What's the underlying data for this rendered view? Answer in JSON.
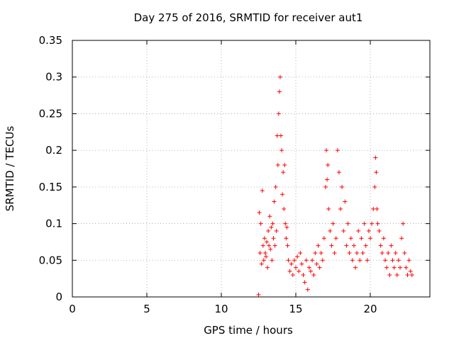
{
  "chart_data": {
    "type": "scatter",
    "title": "Day 275 of 2016, SRMTID for receiver aut1",
    "xlabel": "GPS time / hours",
    "ylabel": "SRMTID / TECUs",
    "xlim": [
      0,
      24
    ],
    "ylim": [
      0,
      0.35
    ],
    "xticks": [
      0,
      5,
      10,
      15,
      20
    ],
    "xtick_labels": [
      "0",
      "5",
      "10",
      "15",
      "20"
    ],
    "yticks": [
      0,
      0.05,
      0.1,
      0.15,
      0.2,
      0.25,
      0.3,
      0.35
    ],
    "ytick_labels": [
      "0",
      "0.05",
      "0.1",
      "0.15",
      "0.2",
      "0.25",
      "0.3",
      "0.35"
    ],
    "grid": true,
    "marker": "plus",
    "color": "#ff0000",
    "series": [
      {
        "name": "",
        "x": [
          12.5,
          12.55,
          12.6,
          12.65,
          12.7,
          12.75,
          12.8,
          12.85,
          12.9,
          12.95,
          13.0,
          13.05,
          13.1,
          13.15,
          13.2,
          13.25,
          13.3,
          13.35,
          13.4,
          13.45,
          13.5,
          13.55,
          13.6,
          13.65,
          13.7,
          13.75,
          13.8,
          13.85,
          13.9,
          13.95,
          14.0,
          14.05,
          14.1,
          14.15,
          14.2,
          14.25,
          14.3,
          14.35,
          14.4,
          14.45,
          14.5,
          14.6,
          14.7,
          14.8,
          14.9,
          15.0,
          15.1,
          15.2,
          15.3,
          15.4,
          15.5,
          15.6,
          15.7,
          15.8,
          15.9,
          16.0,
          16.1,
          16.2,
          16.3,
          16.4,
          16.5,
          16.6,
          16.7,
          16.8,
          16.9,
          17.0,
          17.05,
          17.1,
          17.15,
          17.2,
          17.3,
          17.4,
          17.5,
          17.6,
          17.7,
          17.8,
          17.9,
          18.0,
          18.1,
          18.2,
          18.3,
          18.4,
          18.5,
          18.6,
          18.7,
          18.8,
          18.9,
          19.0,
          19.1,
          19.2,
          19.3,
          19.4,
          19.5,
          19.6,
          19.7,
          19.8,
          19.9,
          20.0,
          20.1,
          20.2,
          20.3,
          20.35,
          20.4,
          20.45,
          20.5,
          20.6,
          20.7,
          20.8,
          20.9,
          21.0,
          21.1,
          21.2,
          21.3,
          21.4,
          21.5,
          21.6,
          21.7,
          21.8,
          21.9,
          22.0,
          22.1,
          22.2,
          22.3,
          22.4,
          22.5,
          22.6,
          22.7,
          22.8
        ],
        "y": [
          0.003,
          0.115,
          0.06,
          0.1,
          0.045,
          0.145,
          0.07,
          0.05,
          0.08,
          0.06,
          0.055,
          0.075,
          0.04,
          0.09,
          0.07,
          0.11,
          0.065,
          0.095,
          0.05,
          0.1,
          0.08,
          0.13,
          0.07,
          0.15,
          0.09,
          0.22,
          0.18,
          0.25,
          0.28,
          0.3,
          0.22,
          0.2,
          0.14,
          0.17,
          0.12,
          0.18,
          0.1,
          0.08,
          0.095,
          0.07,
          0.05,
          0.035,
          0.045,
          0.03,
          0.05,
          0.04,
          0.055,
          0.035,
          0.06,
          0.045,
          0.03,
          0.02,
          0.05,
          0.01,
          0.04,
          0.035,
          0.05,
          0.03,
          0.06,
          0.045,
          0.07,
          0.04,
          0.06,
          0.05,
          0.08,
          0.15,
          0.2,
          0.16,
          0.18,
          0.12,
          0.09,
          0.07,
          0.1,
          0.06,
          0.08,
          0.2,
          0.17,
          0.12,
          0.15,
          0.09,
          0.13,
          0.07,
          0.1,
          0.06,
          0.08,
          0.05,
          0.07,
          0.04,
          0.06,
          0.09,
          0.05,
          0.08,
          0.06,
          0.1,
          0.07,
          0.05,
          0.09,
          0.08,
          0.1,
          0.12,
          0.15,
          0.19,
          0.17,
          0.12,
          0.1,
          0.09,
          0.07,
          0.06,
          0.08,
          0.05,
          0.04,
          0.06,
          0.03,
          0.07,
          0.05,
          0.04,
          0.06,
          0.03,
          0.05,
          0.04,
          0.08,
          0.1,
          0.06,
          0.04,
          0.03,
          0.05,
          0.035,
          0.03
        ]
      }
    ]
  }
}
